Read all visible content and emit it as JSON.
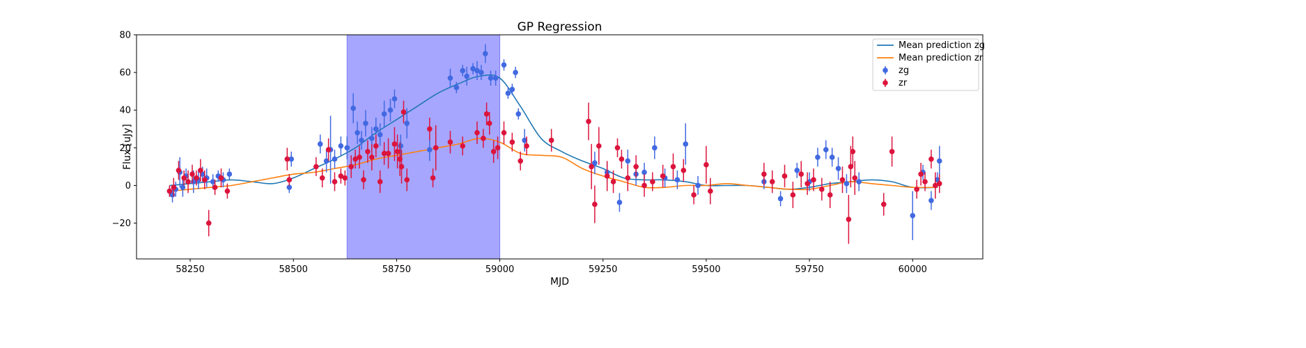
{
  "chart_data": {
    "type": "scatter",
    "title": "GP Regression",
    "xlabel": "MJD",
    "ylabel": "Flux [uJy]",
    "xlim": [
      58120,
      60170
    ],
    "ylim": [
      -39,
      80
    ],
    "x_ticks": [
      58250,
      58500,
      58750,
      59000,
      59250,
      59500,
      59750,
      60000
    ],
    "y_ticks": [
      -20,
      0,
      20,
      40,
      60,
      80
    ],
    "grid": false,
    "legend_position": "top-right",
    "highlight_region": {
      "x_start": 58630,
      "x_end": 59000,
      "color": "#a6a6ff"
    },
    "mean_predictions": [
      {
        "name": "Mean prediction zg",
        "color": "#1f77b4",
        "x": [
          58200,
          58250,
          58300,
          58350,
          58400,
          58450,
          58500,
          58550,
          58600,
          58650,
          58700,
          58750,
          58800,
          58850,
          58900,
          58950,
          59000,
          59050,
          59100,
          59150,
          59200,
          59250,
          59300,
          59350,
          59400,
          59450,
          59500,
          59550,
          59600,
          59650,
          59700,
          59750,
          59800,
          59850,
          59900,
          59950,
          60000,
          60060
        ],
        "y": [
          0,
          1,
          2,
          3,
          2,
          1,
          4,
          9,
          14,
          20,
          28,
          35,
          42,
          49,
          54,
          58,
          57,
          42,
          25,
          18,
          13,
          9,
          4,
          3,
          3,
          2,
          0,
          0,
          0,
          -1,
          -2,
          -1,
          1,
          2,
          3,
          2,
          -1,
          -1
        ]
      },
      {
        "name": "Mean prediction zr",
        "color": "#ff7f0e",
        "x": [
          58200,
          58250,
          58300,
          58350,
          58400,
          58450,
          58500,
          58550,
          58600,
          58650,
          58700,
          58750,
          58800,
          58850,
          58900,
          58950,
          59000,
          59050,
          59100,
          59150,
          59200,
          59250,
          59300,
          59350,
          59400,
          59450,
          59500,
          59550,
          59600,
          59650,
          59700,
          59750,
          59800,
          59850,
          59900,
          59950,
          60000,
          60060
        ],
        "y": [
          -3,
          -2,
          -1,
          0,
          2,
          4,
          6,
          7,
          9,
          11,
          14,
          16,
          18,
          20,
          22,
          25,
          23,
          17,
          16,
          15,
          9,
          5,
          2,
          -1,
          -1,
          0,
          0,
          1,
          0,
          -1,
          -2,
          -2,
          0,
          2,
          1,
          0,
          -1,
          -1
        ]
      }
    ],
    "series": [
      {
        "name": "zg",
        "color": "#4169e1",
        "x": [
          58200,
          58207,
          58215,
          58225,
          58232,
          58240,
          58258,
          58270,
          58280,
          58290,
          58305,
          58318,
          58330,
          58345,
          58490,
          58495,
          58565,
          58580,
          58590,
          58600,
          58615,
          58630,
          58645,
          58655,
          58665,
          58675,
          58690,
          58700,
          58710,
          58720,
          58735,
          58745,
          58760,
          58775,
          58830,
          58880,
          58895,
          58910,
          58920,
          58935,
          58945,
          58955,
          58965,
          58978,
          58990,
          59010,
          59020,
          59030,
          59038,
          59045,
          59060,
          59230,
          59260,
          59290,
          59310,
          59330,
          59350,
          59375,
          59400,
          59430,
          59450,
          59480,
          59640,
          59680,
          59720,
          59750,
          59770,
          59790,
          59805,
          59820,
          59840,
          59870,
          60000,
          60025,
          60045,
          60060,
          60065
        ],
        "y": [
          -3,
          -5,
          -2,
          7,
          -1,
          5,
          2,
          3,
          6,
          4,
          2,
          5,
          3,
          6,
          -1,
          14,
          22,
          13,
          19,
          14,
          21,
          20,
          41,
          28,
          24,
          33,
          25,
          30,
          27,
          38,
          40,
          46,
          21,
          33,
          19,
          57,
          52,
          61,
          58,
          62,
          61,
          60,
          70,
          57,
          57,
          64,
          49,
          51,
          60,
          38,
          24,
          12,
          7,
          -9,
          13,
          6,
          7,
          20,
          4,
          3,
          22,
          0,
          2,
          -7,
          8,
          2,
          15,
          19,
          15,
          9,
          1,
          2,
          -16,
          7,
          -8,
          3,
          13
        ],
        "err": [
          3,
          4,
          4,
          8,
          5,
          4,
          6,
          5,
          4,
          5,
          4,
          3,
          4,
          3,
          3,
          4,
          5,
          6,
          18,
          5,
          5,
          6,
          8,
          6,
          5,
          7,
          6,
          6,
          6,
          7,
          6,
          5,
          6,
          8,
          6,
          5,
          3,
          3,
          5,
          3,
          5,
          4,
          5,
          4,
          4,
          3,
          3,
          3,
          3,
          3,
          6,
          6,
          5,
          5,
          6,
          6,
          5,
          6,
          5,
          5,
          11,
          5,
          4,
          4,
          4,
          5,
          5,
          5,
          5,
          6,
          5,
          5,
          13,
          4,
          5,
          4,
          8
        ]
      },
      {
        "name": "zr",
        "color": "#dc143c",
        "x": [
          58200,
          58210,
          58222,
          58235,
          58245,
          58255,
          58265,
          58275,
          58285,
          58295,
          58310,
          58325,
          58340,
          58485,
          58490,
          58555,
          58570,
          58585,
          58600,
          58615,
          58625,
          58640,
          58650,
          58660,
          58670,
          58680,
          58690,
          58700,
          58710,
          58720,
          58730,
          58745,
          58752,
          58758,
          58762,
          58767,
          58775,
          58830,
          58838,
          58845,
          58880,
          58910,
          58945,
          58960,
          58968,
          58975,
          58985,
          58995,
          59010,
          59030,
          59050,
          59065,
          59125,
          59215,
          59222,
          59230,
          59240,
          59260,
          59275,
          59285,
          59295,
          59310,
          59330,
          59350,
          59370,
          59395,
          59420,
          59445,
          59470,
          59500,
          59510,
          59640,
          59660,
          59690,
          59710,
          59730,
          59745,
          59760,
          59780,
          59800,
          59830,
          59845,
          59850,
          59855,
          59860,
          59930,
          59950,
          60010,
          60020,
          60030,
          60045,
          60055,
          60065
        ],
        "y": [
          -3,
          -1,
          8,
          4,
          2,
          6,
          4,
          8,
          3,
          -20,
          -1,
          4,
          -3,
          14,
          3,
          10,
          4,
          19,
          2,
          5,
          4,
          10,
          14,
          15,
          3,
          18,
          15,
          21,
          2,
          17,
          17,
          22,
          18,
          14,
          10,
          39,
          3,
          30,
          4,
          20,
          23,
          21,
          28,
          25,
          38,
          33,
          18,
          20,
          28,
          23,
          13,
          21,
          24,
          34,
          10,
          -10,
          21,
          5,
          2,
          20,
          14,
          4,
          10,
          0,
          2,
          5,
          10,
          8,
          -5,
          11,
          -3,
          6,
          2,
          5,
          -5,
          6,
          1,
          3,
          -2,
          -5,
          3,
          -18,
          10,
          18,
          4,
          -10,
          18,
          -2,
          6,
          2,
          14,
          0,
          1
        ],
        "err": [
          3,
          5,
          5,
          4,
          6,
          5,
          4,
          6,
          5,
          7,
          4,
          5,
          4,
          6,
          3,
          5,
          5,
          6,
          5,
          4,
          4,
          6,
          5,
          6,
          5,
          6,
          7,
          6,
          6,
          6,
          8,
          9,
          9,
          9,
          9,
          6,
          6,
          6,
          5,
          12,
          6,
          5,
          6,
          5,
          6,
          6,
          6,
          6,
          6,
          5,
          5,
          5,
          6,
          10,
          12,
          10,
          10,
          8,
          6,
          5,
          5,
          7,
          6,
          6,
          5,
          6,
          7,
          6,
          5,
          10,
          7,
          6,
          6,
          6,
          7,
          7,
          6,
          6,
          6,
          7,
          7,
          13,
          11,
          8,
          9,
          6,
          8,
          5,
          6,
          5,
          5,
          7,
          5
        ]
      }
    ]
  }
}
